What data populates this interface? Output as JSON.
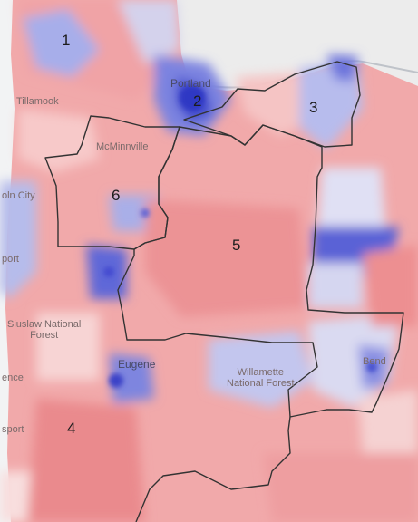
{
  "map": {
    "colors": {
      "democratic_strong": "#4f57d8",
      "democratic_lean": "#a9b0ea",
      "tossup": "#e7e2ef",
      "republican_lean": "#f3b3b3",
      "republican_strong": "#e5767a",
      "ocean": "#f4f5f6",
      "district_boundary": "#333333"
    },
    "districts": [
      {
        "number": "1"
      },
      {
        "number": "2"
      },
      {
        "number": "3"
      },
      {
        "number": "4"
      },
      {
        "number": "5"
      },
      {
        "number": "6"
      }
    ],
    "places": {
      "tillamook": "Tillamook",
      "portland": "Portland",
      "mcminnville": "McMinnville",
      "lincoln_city": "oln City",
      "newport": "port",
      "siuslaw_line1": "Siuslaw National",
      "siuslaw_line2": "Forest",
      "florence": "ence",
      "eugene": "Eugene",
      "willamette_line1": "Willamette",
      "willamette_line2": "National Forest",
      "bend": "Bend",
      "coos": "sport"
    }
  }
}
